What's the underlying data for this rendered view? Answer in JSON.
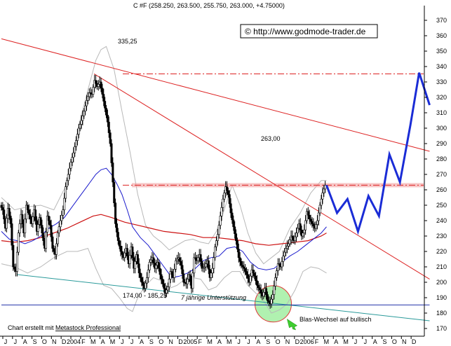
{
  "header": {
    "title": "C #F (258.250, 263.500, 255.750, 263.000, +4.75000)",
    "copyright": "© http://www.godmode-trader.de"
  },
  "annotations": {
    "high_label": "335,25",
    "resistance_label": "263,00",
    "support_range": "174,00 - 185,25",
    "support_note": "7 jährige Unterstützung",
    "wave_note": "Blas-Wechsel auf bullisch",
    "credit_prefix": "Chart erstellt mit ",
    "credit_link": "Metastock Professional"
  },
  "chart_data": {
    "type": "candlestick",
    "title": "C #F (258.250, 263.500, 255.750, 263.000, +4.75000)",
    "ylim": [
      165,
      375
    ],
    "y_ticks": [
      170,
      180,
      190,
      200,
      210,
      220,
      230,
      240,
      250,
      260,
      270,
      280,
      290,
      300,
      310,
      320,
      330,
      340,
      350,
      360,
      370
    ],
    "x_month_labels": [
      "J",
      "J",
      "A",
      "S",
      "O",
      "N",
      "D",
      "2004",
      "F",
      "M",
      "A",
      "M",
      "J",
      "J",
      "A",
      "S",
      "O",
      "N",
      "D",
      "2005",
      "F",
      "M",
      "A",
      "M",
      "J",
      "J",
      "A",
      "S",
      "O",
      "N",
      "D",
      "2006",
      "F",
      "M",
      "A",
      "M",
      "J",
      "J",
      "A",
      "S",
      "O",
      "N",
      "D"
    ],
    "price_path": [
      [
        0,
        250
      ],
      [
        3,
        247
      ],
      [
        6,
        235
      ],
      [
        9,
        248
      ],
      [
        12,
        238
      ],
      [
        15,
        210
      ],
      [
        18,
        207
      ],
      [
        21,
        232
      ],
      [
        24,
        244
      ],
      [
        27,
        232
      ],
      [
        30,
        250
      ],
      [
        33,
        244
      ],
      [
        36,
        238
      ],
      [
        39,
        247
      ],
      [
        42,
        233
      ],
      [
        45,
        242
      ],
      [
        48,
        232
      ],
      [
        51,
        222
      ],
      [
        54,
        243
      ],
      [
        57,
        237
      ],
      [
        60,
        222
      ],
      [
        63,
        218
      ],
      [
        66,
        232
      ],
      [
        69,
        240
      ],
      [
        72,
        247
      ],
      [
        75,
        262
      ],
      [
        78,
        270
      ],
      [
        81,
        278
      ],
      [
        84,
        284
      ],
      [
        87,
        292
      ],
      [
        90,
        300
      ],
      [
        93,
        305
      ],
      [
        96,
        311
      ],
      [
        99,
        318
      ],
      [
        102,
        323
      ],
      [
        105,
        322
      ],
      [
        108,
        331
      ],
      [
        111,
        327
      ],
      [
        114,
        330
      ],
      [
        117,
        322
      ],
      [
        120,
        313
      ],
      [
        123,
        304
      ],
      [
        126,
        290
      ],
      [
        129,
        265
      ],
      [
        132,
        238
      ],
      [
        135,
        227
      ],
      [
        138,
        220
      ],
      [
        141,
        216
      ],
      [
        144,
        222
      ],
      [
        147,
        212
      ],
      [
        150,
        223
      ],
      [
        153,
        209
      ],
      [
        156,
        218
      ],
      [
        159,
        206
      ],
      [
        162,
        200
      ],
      [
        165,
        196
      ],
      [
        168,
        203
      ],
      [
        171,
        213
      ],
      [
        174,
        216
      ],
      [
        177,
        209
      ],
      [
        180,
        213
      ],
      [
        183,
        205
      ],
      [
        186,
        199
      ],
      [
        189,
        193
      ],
      [
        192,
        197
      ],
      [
        195,
        207
      ],
      [
        198,
        203
      ],
      [
        201,
        214
      ],
      [
        204,
        216
      ],
      [
        207,
        211
      ],
      [
        210,
        200
      ],
      [
        213,
        199
      ],
      [
        216,
        205
      ],
      [
        219,
        196
      ],
      [
        222,
        216
      ],
      [
        225,
        214
      ],
      [
        228,
        218
      ],
      [
        231,
        209
      ],
      [
        234,
        210
      ],
      [
        237,
        214
      ],
      [
        240,
        203
      ],
      [
        243,
        209
      ],
      [
        246,
        223
      ],
      [
        249,
        231
      ],
      [
        252,
        243
      ],
      [
        255,
        254
      ],
      [
        258,
        262
      ],
      [
        261,
        257
      ],
      [
        264,
        245
      ],
      [
        267,
        236
      ],
      [
        270,
        227
      ],
      [
        273,
        216
      ],
      [
        276,
        211
      ],
      [
        279,
        209
      ],
      [
        282,
        205
      ],
      [
        285,
        200
      ],
      [
        288,
        208
      ],
      [
        291,
        204
      ],
      [
        294,
        198
      ],
      [
        297,
        195
      ],
      [
        300,
        191
      ],
      [
        303,
        196
      ],
      [
        306,
        188
      ],
      [
        309,
        186
      ],
      [
        312,
        192
      ],
      [
        315,
        203
      ],
      [
        318,
        212
      ],
      [
        321,
        210
      ],
      [
        324,
        217
      ],
      [
        327,
        222
      ],
      [
        330,
        225
      ],
      [
        333,
        230
      ],
      [
        336,
        227
      ],
      [
        339,
        232
      ],
      [
        342,
        238
      ],
      [
        345,
        230
      ],
      [
        348,
        234
      ],
      [
        351,
        246
      ],
      [
        354,
        241
      ],
      [
        357,
        238
      ],
      [
        360,
        235
      ],
      [
        363,
        240
      ],
      [
        366,
        250
      ],
      [
        369,
        258
      ],
      [
        372,
        263
      ]
    ],
    "projection_path": [
      [
        372,
        263
      ],
      [
        384,
        245
      ],
      [
        396,
        254
      ],
      [
        408,
        233
      ],
      [
        420,
        256
      ],
      [
        432,
        243
      ],
      [
        444,
        283
      ],
      [
        456,
        265
      ],
      [
        468,
        302
      ],
      [
        478,
        336
      ],
      [
        490,
        315
      ]
    ],
    "moving_average_blue": [
      [
        0,
        233
      ],
      [
        9,
        228
      ],
      [
        18,
        227
      ],
      [
        27,
        225
      ],
      [
        36,
        227
      ],
      [
        45,
        230
      ],
      [
        54,
        235
      ],
      [
        63,
        238
      ],
      [
        72,
        242
      ],
      [
        81,
        249
      ],
      [
        90,
        256
      ],
      [
        99,
        263
      ],
      [
        108,
        270
      ],
      [
        114,
        273
      ],
      [
        120,
        274
      ],
      [
        126,
        270
      ],
      [
        132,
        264
      ],
      [
        138,
        257
      ],
      [
        144,
        247
      ],
      [
        150,
        236
      ],
      [
        159,
        229
      ],
      [
        168,
        224
      ],
      [
        177,
        217
      ],
      [
        186,
        210
      ],
      [
        195,
        203
      ],
      [
        204,
        204
      ],
      [
        213,
        206
      ],
      [
        222,
        209
      ],
      [
        231,
        214
      ],
      [
        240,
        216
      ],
      [
        249,
        217
      ],
      [
        258,
        222
      ],
      [
        267,
        223
      ],
      [
        276,
        220
      ],
      [
        285,
        213
      ],
      [
        294,
        209
      ],
      [
        303,
        208
      ],
      [
        312,
        209
      ],
      [
        321,
        213
      ],
      [
        330,
        217
      ],
      [
        339,
        220
      ],
      [
        348,
        224
      ],
      [
        357,
        228
      ],
      [
        366,
        232
      ],
      [
        372,
        236
      ]
    ],
    "moving_average_red": [
      [
        0,
        227
      ],
      [
        15,
        226
      ],
      [
        30,
        227
      ],
      [
        45,
        229
      ],
      [
        60,
        232
      ],
      [
        75,
        235
      ],
      [
        90,
        239
      ],
      [
        105,
        243
      ],
      [
        114,
        244
      ],
      [
        126,
        242
      ],
      [
        141,
        239
      ],
      [
        156,
        237
      ],
      [
        171,
        235
      ],
      [
        186,
        233
      ],
      [
        201,
        232
      ],
      [
        216,
        231
      ],
      [
        231,
        229
      ],
      [
        246,
        229
      ],
      [
        261,
        228
      ],
      [
        276,
        227
      ],
      [
        291,
        225
      ],
      [
        306,
        224
      ],
      [
        321,
        225
      ],
      [
        336,
        226
      ],
      [
        351,
        227
      ],
      [
        366,
        230
      ],
      [
        372,
        232
      ]
    ],
    "bollinger_upper": [
      [
        0,
        255
      ],
      [
        15,
        247
      ],
      [
        30,
        249
      ],
      [
        45,
        250
      ],
      [
        60,
        247
      ],
      [
        75,
        264
      ],
      [
        90,
        305
      ],
      [
        99,
        325
      ],
      [
        108,
        344
      ],
      [
        114,
        351
      ],
      [
        120,
        353
      ],
      [
        129,
        338
      ],
      [
        138,
        311
      ],
      [
        147,
        285
      ],
      [
        156,
        257
      ],
      [
        165,
        237
      ],
      [
        174,
        230
      ],
      [
        183,
        226
      ],
      [
        192,
        221
      ],
      [
        201,
        224
      ],
      [
        210,
        227
      ],
      [
        219,
        228
      ],
      [
        228,
        226
      ],
      [
        237,
        225
      ],
      [
        246,
        233
      ],
      [
        255,
        247
      ],
      [
        264,
        263
      ],
      [
        273,
        250
      ],
      [
        282,
        232
      ],
      [
        291,
        219
      ],
      [
        300,
        212
      ],
      [
        309,
        216
      ],
      [
        318,
        220
      ],
      [
        330,
        235
      ],
      [
        342,
        245
      ],
      [
        354,
        258
      ],
      [
        366,
        266
      ],
      [
        372,
        266
      ]
    ],
    "bollinger_lower": [
      [
        0,
        212
      ],
      [
        15,
        210
      ],
      [
        30,
        206
      ],
      [
        45,
        210
      ],
      [
        60,
        216
      ],
      [
        75,
        220
      ],
      [
        87,
        220
      ],
      [
        99,
        222
      ],
      [
        108,
        209
      ],
      [
        117,
        198
      ],
      [
        126,
        196
      ],
      [
        135,
        190
      ],
      [
        144,
        183
      ],
      [
        150,
        181
      ],
      [
        156,
        190
      ],
      [
        165,
        198
      ],
      [
        174,
        203
      ],
      [
        183,
        201
      ],
      [
        192,
        196
      ],
      [
        201,
        198
      ],
      [
        210,
        202
      ],
      [
        219,
        203
      ],
      [
        228,
        202
      ],
      [
        237,
        195
      ],
      [
        246,
        197
      ],
      [
        255,
        203
      ],
      [
        264,
        207
      ],
      [
        273,
        207
      ],
      [
        282,
        198
      ],
      [
        291,
        193
      ],
      [
        300,
        188
      ],
      [
        309,
        180
      ],
      [
        318,
        182
      ],
      [
        327,
        186
      ],
      [
        336,
        195
      ],
      [
        345,
        207
      ],
      [
        354,
        210
      ],
      [
        363,
        209
      ],
      [
        372,
        206
      ]
    ],
    "trendlines": [
      {
        "color": "#dd2222",
        "points": [
          [
            0,
            358
          ],
          [
            490,
            285
          ]
        ]
      },
      {
        "color": "#dd2222",
        "points": [
          [
            106,
            335.25
          ],
          [
            490,
            202
          ]
        ]
      },
      {
        "color": "#2a9a9a",
        "points": [
          [
            18,
            205
          ],
          [
            490,
            175
          ]
        ]
      },
      {
        "color": "#2233aa",
        "points": [
          [
            0,
            185.25
          ],
          [
            490,
            185.25
          ]
        ]
      }
    ],
    "horizontal_levels": [
      {
        "value": 335.25,
        "label": "335,25",
        "style": "dash-dot",
        "color": "#dd2222"
      },
      {
        "value": 263.0,
        "label": "263,00",
        "style": "band",
        "color": "#f2a0a0"
      },
      {
        "value": 263.0,
        "style": "dash-dot",
        "color": "#dd2222"
      }
    ],
    "grid": false,
    "colors": {
      "candles": "#000000",
      "projection": "#1a2cd6",
      "circle_fill": "#a8f0a8",
      "arrow": "#3fce2f"
    }
  }
}
